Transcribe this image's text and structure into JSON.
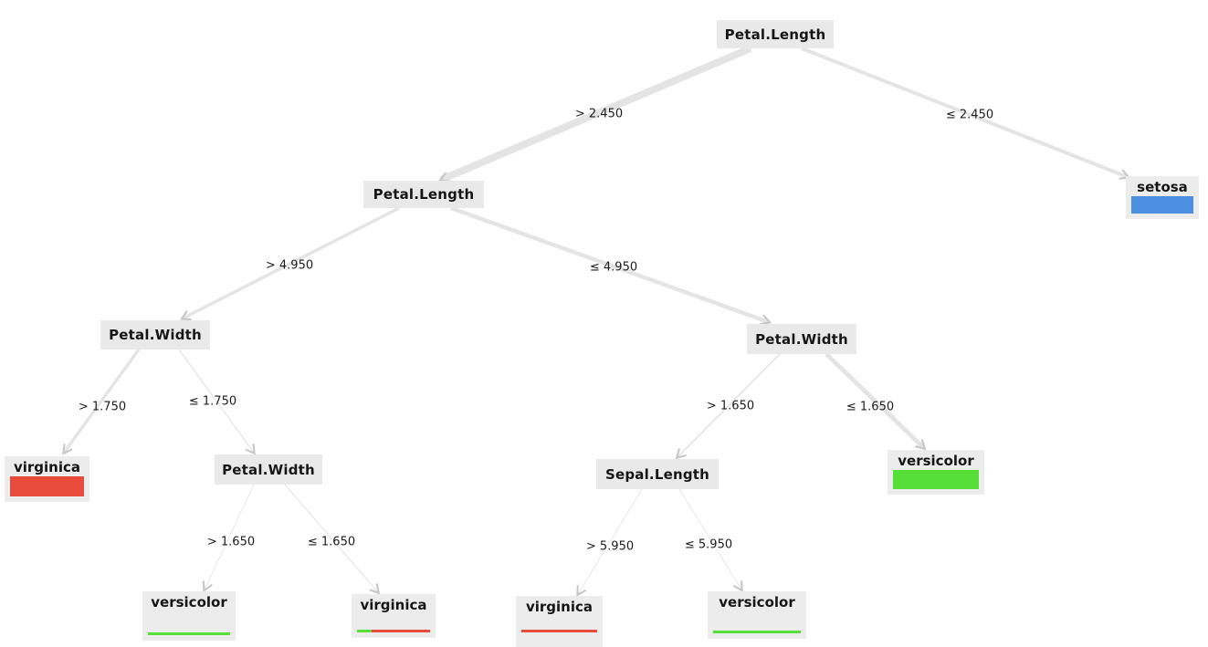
{
  "tree": {
    "splits": [
      {
        "id": "root",
        "label": "Petal.Length"
      },
      {
        "id": "petal-length-2",
        "label": "Petal.Length"
      },
      {
        "id": "petal-width-left",
        "label": "Petal.Width"
      },
      {
        "id": "petal-width-right",
        "label": "Petal.Width"
      },
      {
        "id": "petal-width-mid",
        "label": "Petal.Width"
      },
      {
        "id": "sepal-length",
        "label": "Sepal.Length"
      }
    ],
    "leaves": [
      {
        "id": "setosa",
        "label": "setosa",
        "bar": [
          {
            "color": "#4b90e0",
            "pct": 100
          }
        ]
      },
      {
        "id": "virginica-left",
        "label": "virginica",
        "bar": [
          {
            "color": "#e84a3c",
            "pct": 100
          }
        ]
      },
      {
        "id": "versicolor-right",
        "label": "versicolor",
        "bar": [
          {
            "color": "#56de39",
            "pct": 100
          }
        ]
      },
      {
        "id": "versicolor-bottom-left",
        "label": "versicolor",
        "bar": [
          {
            "color": "#56de39",
            "pct": 100
          }
        ]
      },
      {
        "id": "virginica-bottom",
        "label": "virginica",
        "bar": [
          {
            "color": "#56de39",
            "pct": 20
          },
          {
            "color": "#e84a3c",
            "pct": 80
          }
        ]
      },
      {
        "id": "virginica-bottom-mid",
        "label": "virginica",
        "bar": [
          {
            "color": "#e84a3c",
            "pct": 100
          }
        ]
      },
      {
        "id": "versicolor-bottom-right",
        "label": "versicolor",
        "bar": [
          {
            "color": "#56de39",
            "pct": 100
          }
        ]
      }
    ],
    "edges": [
      {
        "from": "root",
        "to": "petal-length-2",
        "label": "> 2.450"
      },
      {
        "from": "root",
        "to": "setosa",
        "label": "≤ 2.450"
      },
      {
        "from": "petal-length-2",
        "to": "petal-width-left",
        "label": "> 4.950"
      },
      {
        "from": "petal-length-2",
        "to": "petal-width-right",
        "label": "≤ 4.950"
      },
      {
        "from": "petal-width-left",
        "to": "virginica-left",
        "label": "> 1.750"
      },
      {
        "from": "petal-width-left",
        "to": "petal-width-mid",
        "label": "≤ 1.750"
      },
      {
        "from": "petal-width-mid",
        "to": "versicolor-bottom-left",
        "label": "> 1.650"
      },
      {
        "from": "petal-width-mid",
        "to": "virginica-bottom",
        "label": "≤ 1.650"
      },
      {
        "from": "petal-width-right",
        "to": "sepal-length",
        "label": "> 1.650"
      },
      {
        "from": "petal-width-right",
        "to": "versicolor-right",
        "label": "≤ 1.650"
      },
      {
        "from": "sepal-length",
        "to": "virginica-bottom-mid",
        "label": "> 5.950"
      },
      {
        "from": "sepal-length",
        "to": "versicolor-bottom-right",
        "label": "≤ 5.950"
      }
    ],
    "colors": {
      "setosa": "#4b90e0",
      "versicolor": "#56de39",
      "virginica": "#e84a3c",
      "node_bg": "#e9e9e9",
      "leaf_bg": "#ececec",
      "edge": "#e4e4e4",
      "arrowhead": "#c6c6c6"
    }
  }
}
